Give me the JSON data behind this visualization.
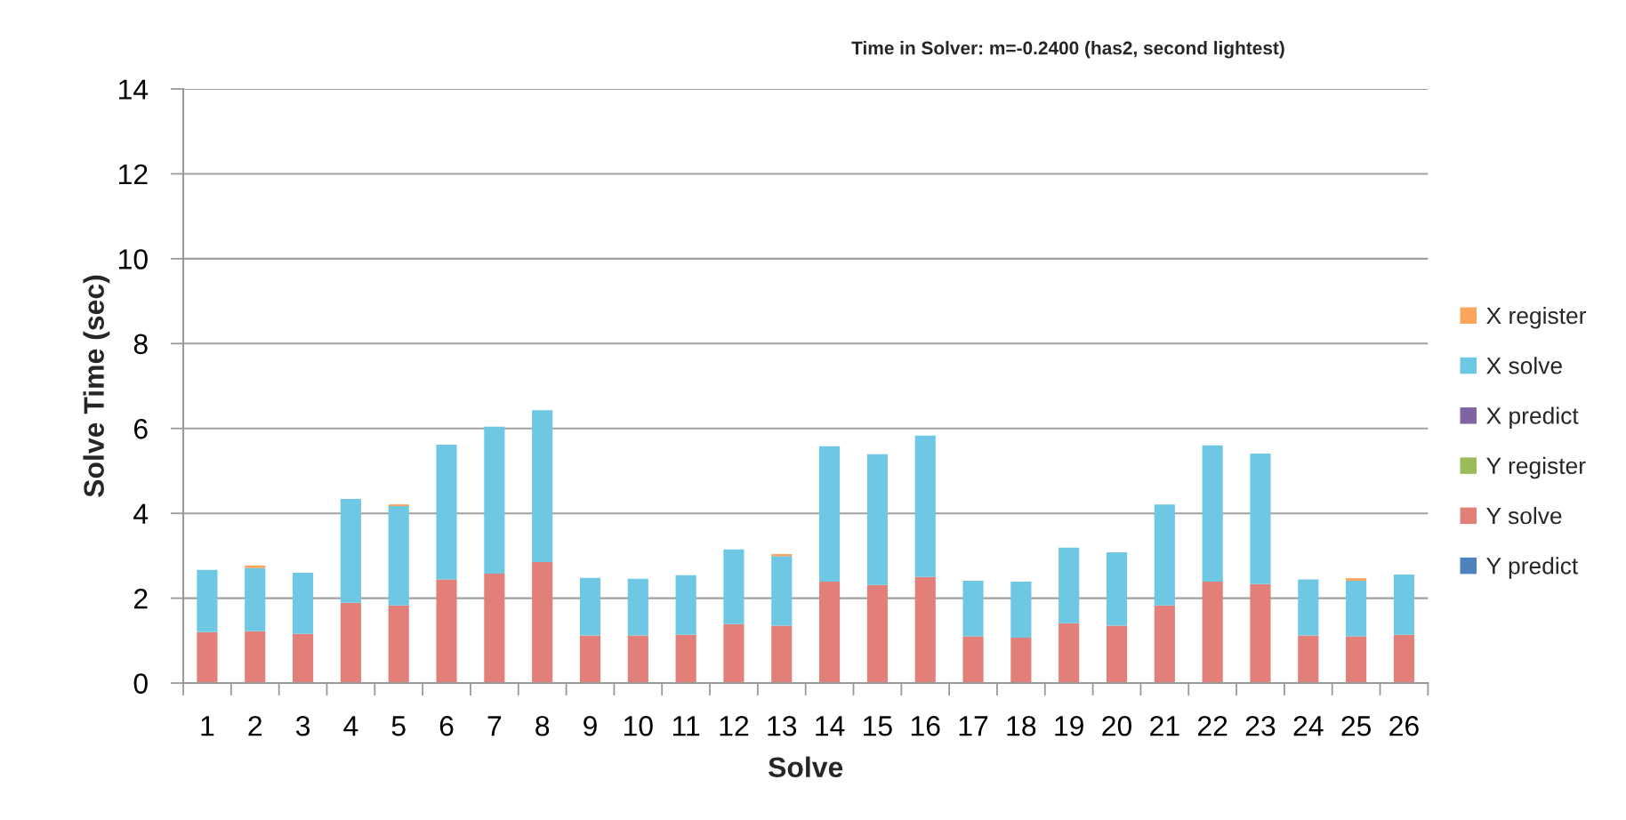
{
  "chart_data": {
    "type": "bar",
    "title": "Time in Solver: m=-0.2400 (has2, second lightest)",
    "xlabel": "Solve",
    "ylabel": "Solve Time (sec)",
    "categories": [
      "1",
      "2",
      "3",
      "4",
      "5",
      "6",
      "7",
      "8",
      "9",
      "10",
      "11",
      "12",
      "13",
      "14",
      "15",
      "16",
      "17",
      "18",
      "19",
      "20",
      "21",
      "22",
      "23",
      "24",
      "25",
      "26"
    ],
    "stacked": true,
    "ylim": [
      0,
      14
    ],
    "yticks": [
      0,
      2,
      4,
      6,
      8,
      10,
      12,
      14
    ],
    "grid": "y",
    "legend": "right",
    "series": [
      {
        "name": "Y predict",
        "color": "#4f81bd",
        "values": [
          0,
          0,
          0,
          0,
          0,
          0,
          0,
          0,
          0,
          0,
          0,
          0,
          0,
          0,
          0,
          0,
          0,
          0,
          0,
          0,
          0,
          0,
          0,
          0,
          0,
          0
        ]
      },
      {
        "name": "Y solve",
        "color": "#e27f79",
        "values": [
          1.2,
          1.22,
          1.16,
          1.89,
          1.83,
          2.44,
          2.58,
          2.85,
          1.12,
          1.12,
          1.14,
          1.39,
          1.35,
          2.39,
          2.31,
          2.5,
          1.1,
          1.07,
          1.41,
          1.35,
          1.83,
          2.39,
          2.33,
          1.12,
          1.1,
          1.14
        ]
      },
      {
        "name": "Y register",
        "color": "#9bbb59",
        "values": [
          0,
          0,
          0,
          0,
          0,
          0,
          0,
          0,
          0,
          0,
          0,
          0,
          0,
          0,
          0,
          0,
          0,
          0,
          0,
          0,
          0,
          0,
          0,
          0,
          0,
          0
        ]
      },
      {
        "name": "X predict",
        "color": "#8064a2",
        "values": [
          0,
          0,
          0,
          0,
          0,
          0,
          0,
          0,
          0,
          0,
          0,
          0,
          0,
          0,
          0,
          0,
          0,
          0,
          0,
          0,
          0,
          0,
          0,
          0,
          0,
          0
        ]
      },
      {
        "name": "X solve",
        "color": "#6ec8e3",
        "values": [
          1.47,
          1.49,
          1.44,
          2.45,
          2.34,
          3.18,
          3.46,
          3.58,
          1.36,
          1.34,
          1.4,
          1.76,
          1.64,
          3.19,
          3.08,
          3.33,
          1.31,
          1.32,
          1.78,
          1.73,
          2.38,
          3.21,
          3.08,
          1.32,
          1.31,
          1.42
        ]
      },
      {
        "name": "X register",
        "color": "#f9a55b",
        "values": [
          0,
          0.06,
          0,
          0,
          0.04,
          0,
          0,
          0,
          0,
          0,
          0,
          0,
          0.05,
          0,
          0,
          0,
          0,
          0,
          0,
          0,
          0,
          0,
          0,
          0,
          0.06,
          0
        ]
      }
    ]
  }
}
